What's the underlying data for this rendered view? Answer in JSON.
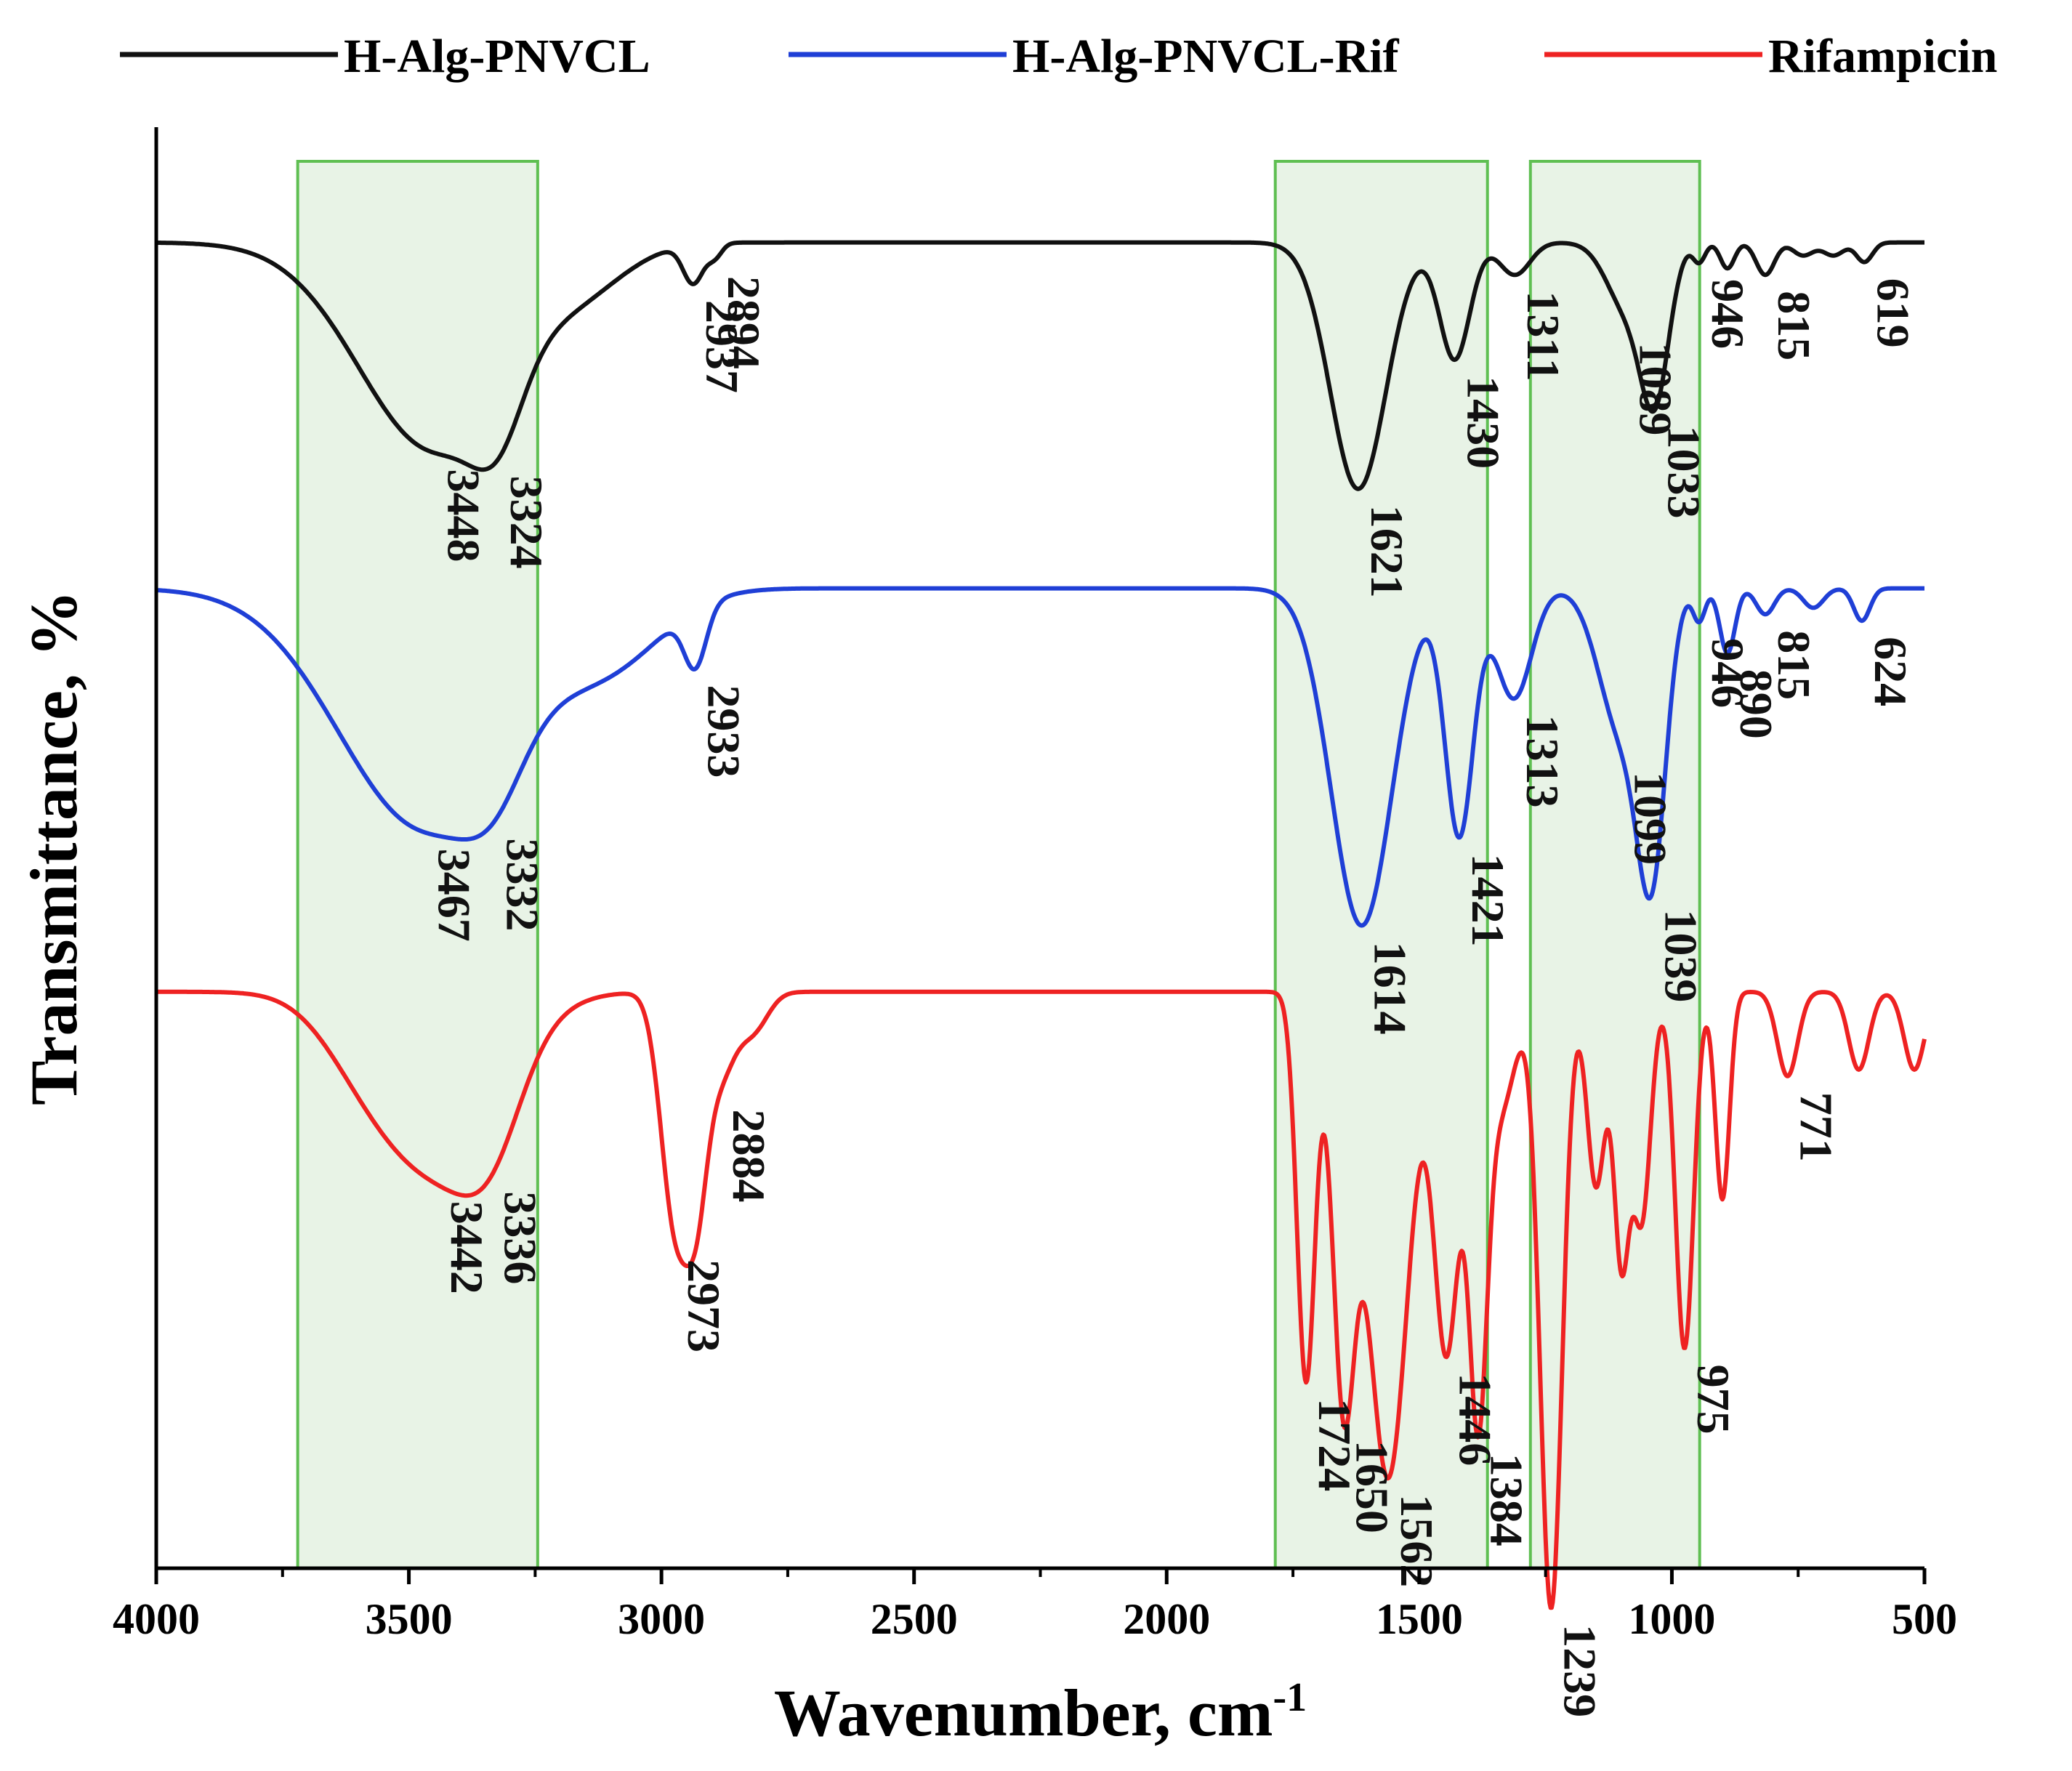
{
  "chart_data": {
    "type": "line",
    "title": "",
    "xlabel": "Wavenumber, cm",
    "xlabel_superscript": "-1",
    "ylabel": "Transmittance, %",
    "xlim": [
      4000,
      500
    ],
    "x_ticks": [
      4000,
      3500,
      3000,
      2500,
      2000,
      1500,
      1000,
      500
    ],
    "y_ticks_shown": false,
    "legend_position": "top",
    "shaded_regions": [
      {
        "from": 3720,
        "to": 3245,
        "color": "#e8f3e6",
        "edge": "#5fbf52"
      },
      {
        "from": 1785,
        "to": 1365,
        "color": "#e8f3e6",
        "edge": "#5fbf52"
      },
      {
        "from": 1280,
        "to": 945,
        "color": "#e8f3e6",
        "edge": "#5fbf52"
      }
    ],
    "series": [
      {
        "name": "H-Alg-PNVCL",
        "color": "#111111",
        "baseline_fraction": 0.92,
        "bands": [
          {
            "x": 3448,
            "depth": 0.32,
            "width": 150
          },
          {
            "x": 3324,
            "depth": 0.1,
            "width": 50
          },
          {
            "x": 3150,
            "depth": 0.05,
            "width": 90
          },
          {
            "x": 2937,
            "depth": 0.06,
            "width": 20
          },
          {
            "x": 2894,
            "depth": 0.02,
            "width": 14
          },
          {
            "x": 1621,
            "depth": 0.38,
            "width": 55
          },
          {
            "x": 1430,
            "depth": 0.18,
            "width": 30
          },
          {
            "x": 1311,
            "depth": 0.05,
            "width": 30
          },
          {
            "x": 1089,
            "depth": 0.1,
            "width": 40
          },
          {
            "x": 1033,
            "depth": 0.22,
            "width": 28
          },
          {
            "x": 946,
            "depth": 0.03,
            "width": 12
          },
          {
            "x": 890,
            "depth": 0.04,
            "width": 14
          },
          {
            "x": 815,
            "depth": 0.05,
            "width": 18
          },
          {
            "x": 740,
            "depth": 0.02,
            "width": 20
          },
          {
            "x": 680,
            "depth": 0.02,
            "width": 20
          },
          {
            "x": 619,
            "depth": 0.03,
            "width": 16
          }
        ],
        "labels": [
          {
            "x": 3448,
            "text": "3448"
          },
          {
            "x": 3324,
            "text": "3324"
          },
          {
            "x": 2937,
            "text": "2937"
          },
          {
            "x": 2894,
            "text": "2894"
          },
          {
            "x": 1621,
            "text": "1621"
          },
          {
            "x": 1430,
            "text": "1430"
          },
          {
            "x": 1311,
            "text": "1311"
          },
          {
            "x": 1089,
            "text": "1089"
          },
          {
            "x": 1033,
            "text": "1033"
          },
          {
            "x": 946,
            "text": "946"
          },
          {
            "x": 815,
            "text": "815"
          },
          {
            "x": 619,
            "text": "619"
          }
        ]
      },
      {
        "name": "H-Alg-PNVCL-Rif",
        "color": "#1f3fd6",
        "baseline_fraction": 0.68,
        "bands": [
          {
            "x": 3467,
            "depth": 0.37,
            "width": 170
          },
          {
            "x": 3332,
            "depth": 0.08,
            "width": 60
          },
          {
            "x": 3100,
            "depth": 0.1,
            "width": 110
          },
          {
            "x": 2933,
            "depth": 0.09,
            "width": 22
          },
          {
            "x": 1614,
            "depth": 0.52,
            "width": 60
          },
          {
            "x": 1421,
            "depth": 0.38,
            "width": 28
          },
          {
            "x": 1313,
            "depth": 0.17,
            "width": 35
          },
          {
            "x": 1099,
            "depth": 0.22,
            "width": 45
          },
          {
            "x": 1039,
            "depth": 0.38,
            "width": 28
          },
          {
            "x": 946,
            "depth": 0.05,
            "width": 12
          },
          {
            "x": 890,
            "depth": 0.1,
            "width": 15
          },
          {
            "x": 815,
            "depth": 0.04,
            "width": 18
          },
          {
            "x": 720,
            "depth": 0.03,
            "width": 20
          },
          {
            "x": 624,
            "depth": 0.05,
            "width": 16
          }
        ],
        "labels": [
          {
            "x": 3467,
            "text": "3467"
          },
          {
            "x": 3332,
            "text": "3332"
          },
          {
            "x": 2933,
            "text": "2933"
          },
          {
            "x": 1614,
            "text": "1614"
          },
          {
            "x": 1421,
            "text": "1421"
          },
          {
            "x": 1313,
            "text": "1313"
          },
          {
            "x": 1099,
            "text": "1099"
          },
          {
            "x": 1039,
            "text": "1039"
          },
          {
            "x": 946,
            "text": "946"
          },
          {
            "x": 890,
            "text": "890"
          },
          {
            "x": 815,
            "text": "815"
          },
          {
            "x": 624,
            "text": "624"
          }
        ]
      },
      {
        "name": "Rifampicin",
        "color": "#ee2222",
        "baseline_fraction": 0.4,
        "bands": [
          {
            "x": 3442,
            "depth": 0.27,
            "width": 120
          },
          {
            "x": 3336,
            "depth": 0.1,
            "width": 60
          },
          {
            "x": 3600,
            "depth": 0.05,
            "width": 80
          },
          {
            "x": 2973,
            "depth": 0.35,
            "width": 28
          },
          {
            "x": 2884,
            "depth": 0.12,
            "width": 28
          },
          {
            "x": 2930,
            "depth": 0.25,
            "width": 22
          },
          {
            "x": 2820,
            "depth": 0.06,
            "width": 30
          },
          {
            "x": 1724,
            "depth": 0.6,
            "width": 18
          },
          {
            "x": 1650,
            "depth": 0.6,
            "width": 22
          },
          {
            "x": 1562,
            "depth": 0.75,
            "width": 40
          },
          {
            "x": 1446,
            "depth": 0.55,
            "width": 25
          },
          {
            "x": 1384,
            "depth": 0.6,
            "width": 18
          },
          {
            "x": 1340,
            "depth": 0.18,
            "width": 30
          },
          {
            "x": 1239,
            "depth": 0.95,
            "width": 22
          },
          {
            "x": 1150,
            "depth": 0.3,
            "width": 18
          },
          {
            "x": 1100,
            "depth": 0.4,
            "width": 15
          },
          {
            "x": 1060,
            "depth": 0.35,
            "width": 18
          },
          {
            "x": 975,
            "depth": 0.55,
            "width": 18
          },
          {
            "x": 900,
            "depth": 0.32,
            "width": 14
          },
          {
            "x": 771,
            "depth": 0.13,
            "width": 20
          },
          {
            "x": 630,
            "depth": 0.12,
            "width": 20
          },
          {
            "x": 520,
            "depth": 0.12,
            "width": 20
          }
        ],
        "labels": [
          {
            "x": 3442,
            "text": "3442"
          },
          {
            "x": 3336,
            "text": "3336"
          },
          {
            "x": 2973,
            "text": "2973"
          },
          {
            "x": 2884,
            "text": "2884"
          },
          {
            "x": 1724,
            "text": "1724"
          },
          {
            "x": 1650,
            "text": "1650"
          },
          {
            "x": 1562,
            "text": "1562"
          },
          {
            "x": 1446,
            "text": "1446"
          },
          {
            "x": 1384,
            "text": "1384"
          },
          {
            "x": 1239,
            "text": "1239"
          },
          {
            "x": 975,
            "text": "975"
          },
          {
            "x": 771,
            "text": "771"
          }
        ]
      }
    ]
  }
}
